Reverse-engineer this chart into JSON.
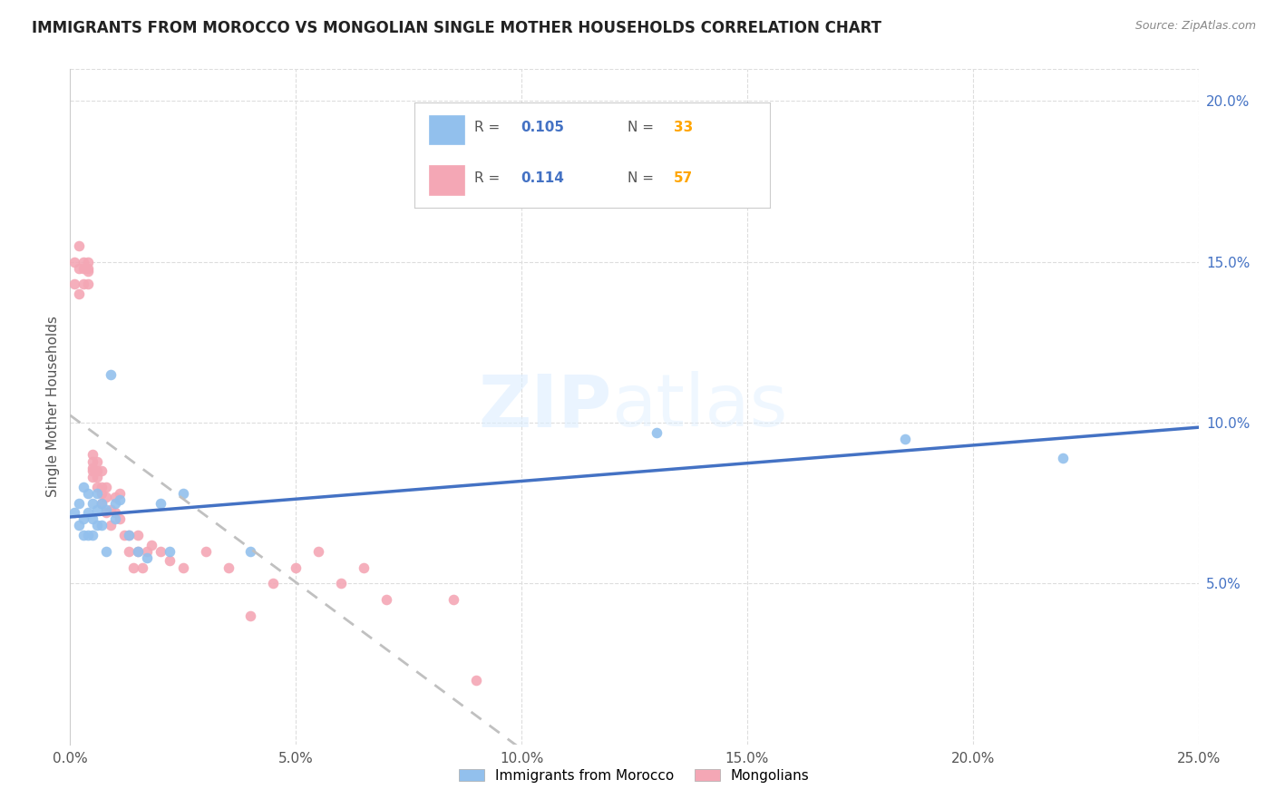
{
  "title": "IMMIGRANTS FROM MOROCCO VS MONGOLIAN SINGLE MOTHER HOUSEHOLDS CORRELATION CHART",
  "source": "Source: ZipAtlas.com",
  "ylabel": "Single Mother Households",
  "xlim": [
    0.0,
    0.25
  ],
  "ylim": [
    0.0,
    0.21
  ],
  "xtick_vals": [
    0.0,
    0.05,
    0.1,
    0.15,
    0.2,
    0.25
  ],
  "xtick_labels": [
    "0.0%",
    "5.0%",
    "10.0%",
    "15.0%",
    "20.0%",
    "25.0%"
  ],
  "ytick_vals": [
    0.05,
    0.1,
    0.15,
    0.2
  ],
  "ytick_labels": [
    "5.0%",
    "10.0%",
    "15.0%",
    "20.0%"
  ],
  "legend_r1_val": "0.105",
  "legend_n1_val": "33",
  "legend_r2_val": "0.114",
  "legend_n2_val": "57",
  "color_morocco": "#92C0ED",
  "color_mongolian": "#F4A7B5",
  "color_trend_morocco": "#4472C4",
  "color_trend_mongolian": "#C0C0C0",
  "color_r_val": "#4472C4",
  "color_n_val": "#FFA500",
  "watermark_zip": "ZIP",
  "watermark_atlas": "atlas",
  "background_color": "#FFFFFF",
  "grid_color": "#DDDDDD",
  "morocco_x": [
    0.001,
    0.002,
    0.002,
    0.003,
    0.003,
    0.003,
    0.004,
    0.004,
    0.004,
    0.005,
    0.005,
    0.005,
    0.006,
    0.006,
    0.006,
    0.007,
    0.007,
    0.008,
    0.008,
    0.009,
    0.01,
    0.01,
    0.011,
    0.013,
    0.015,
    0.017,
    0.02,
    0.022,
    0.025,
    0.04,
    0.13,
    0.185,
    0.22
  ],
  "morocco_y": [
    0.072,
    0.068,
    0.075,
    0.065,
    0.07,
    0.08,
    0.065,
    0.072,
    0.078,
    0.07,
    0.065,
    0.075,
    0.068,
    0.073,
    0.078,
    0.068,
    0.075,
    0.073,
    0.06,
    0.115,
    0.07,
    0.075,
    0.076,
    0.065,
    0.06,
    0.058,
    0.075,
    0.06,
    0.078,
    0.06,
    0.097,
    0.095,
    0.089
  ],
  "mongolian_x": [
    0.001,
    0.001,
    0.002,
    0.002,
    0.002,
    0.003,
    0.003,
    0.003,
    0.004,
    0.004,
    0.004,
    0.004,
    0.005,
    0.005,
    0.005,
    0.005,
    0.005,
    0.006,
    0.006,
    0.006,
    0.006,
    0.007,
    0.007,
    0.007,
    0.007,
    0.008,
    0.008,
    0.008,
    0.009,
    0.009,
    0.01,
    0.01,
    0.011,
    0.011,
    0.012,
    0.013,
    0.013,
    0.014,
    0.015,
    0.015,
    0.016,
    0.017,
    0.018,
    0.02,
    0.022,
    0.025,
    0.03,
    0.035,
    0.04,
    0.045,
    0.05,
    0.055,
    0.06,
    0.065,
    0.07,
    0.085,
    0.09
  ],
  "mongolian_y": [
    0.15,
    0.143,
    0.14,
    0.148,
    0.155,
    0.143,
    0.15,
    0.148,
    0.143,
    0.147,
    0.15,
    0.148,
    0.09,
    0.086,
    0.088,
    0.083,
    0.085,
    0.085,
    0.083,
    0.088,
    0.08,
    0.075,
    0.08,
    0.085,
    0.078,
    0.072,
    0.08,
    0.077,
    0.073,
    0.068,
    0.072,
    0.077,
    0.07,
    0.078,
    0.065,
    0.06,
    0.065,
    0.055,
    0.06,
    0.065,
    0.055,
    0.06,
    0.062,
    0.06,
    0.057,
    0.055,
    0.06,
    0.055,
    0.04,
    0.05,
    0.055,
    0.06,
    0.05,
    0.055,
    0.045,
    0.045,
    0.02
  ]
}
